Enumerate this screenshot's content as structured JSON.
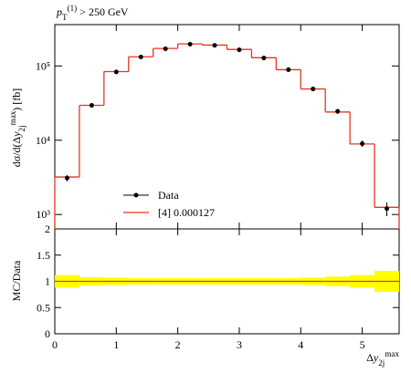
{
  "chart_data": {
    "type": "histogram",
    "title": [
      [
        "p",
        "i"
      ],
      [
        "T",
        "sub"
      ],
      [
        "(1)",
        "sup"
      ],
      [
        " > 250 GeV",
        ""
      ]
    ],
    "ylabel": [
      [
        "dσ/d(Δ",
        ""
      ],
      [
        "y",
        "i"
      ],
      [
        "2j",
        "sub"
      ],
      [
        "max",
        "sup"
      ],
      [
        ") [fb]",
        ""
      ]
    ],
    "xlabel": [
      [
        "Δ",
        ""
      ],
      [
        "y",
        "i"
      ],
      [
        "2j",
        "sub"
      ],
      [
        "max",
        "sup"
      ]
    ],
    "ratio_ylabel": "MC/Data",
    "bins": [
      0,
      0.4,
      0.8,
      1.2,
      1.6,
      2.0,
      2.4,
      2.8,
      3.2,
      3.6,
      4.0,
      4.4,
      4.8,
      5.2,
      5.6
    ],
    "series": [
      {
        "name": "Data",
        "color": "#000000",
        "values": [
          3100,
          29500,
          83000,
          132000,
          170000,
          196000,
          189000,
          165000,
          128000,
          89000,
          49000,
          24500,
          9000,
          1200
        ],
        "errors": [
          300,
          2000,
          5000,
          7000,
          9000,
          10000,
          10000,
          9000,
          7000,
          5000,
          3000,
          2000,
          900,
          250
        ]
      },
      {
        "name": "[4] 0.000127",
        "color": "#e8341c",
        "values": [
          3200,
          29500,
          84000,
          133000,
          172000,
          198000,
          191000,
          167000,
          129000,
          89000,
          49000,
          24000,
          8900,
          1250
        ]
      }
    ],
    "ratio": {
      "values": [
        1,
        1,
        1,
        1,
        1,
        1,
        1,
        1,
        1,
        1,
        1,
        1,
        1,
        1
      ],
      "band": [
        0.12,
        0.08,
        0.07,
        0.06,
        0.06,
        0.06,
        0.06,
        0.06,
        0.06,
        0.06,
        0.07,
        0.09,
        0.12,
        0.2
      ],
      "band_color": "#ffff00"
    },
    "xlim": [
      0,
      5.6
    ],
    "xticks": [
      0,
      1,
      2,
      3,
      4,
      5
    ],
    "ylim": [
      640,
      360000
    ],
    "log_y": true,
    "yticks": [
      {
        "value": 1000,
        "label": "10³"
      },
      {
        "value": 10000,
        "label": "10⁴"
      },
      {
        "value": 100000,
        "label": "10⁵"
      }
    ],
    "ratio_ylim": [
      0,
      2
    ],
    "ratio_yticks": [
      0,
      0.5,
      1,
      1.5,
      2
    ],
    "legend": "bottom-center"
  }
}
